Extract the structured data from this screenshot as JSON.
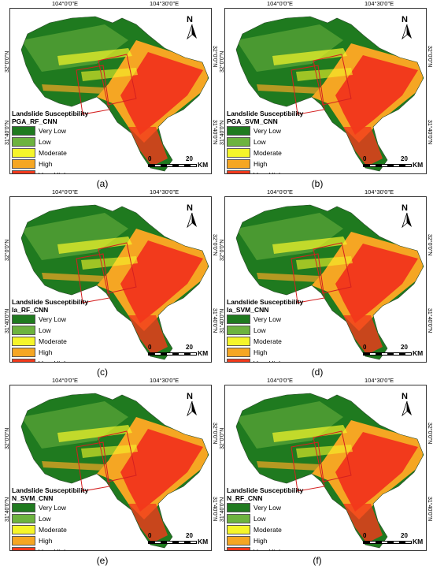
{
  "figure": {
    "legend_title": "Landslide Susceptibility",
    "classes": [
      {
        "label": "Very Low",
        "color": "#1f7a1f"
      },
      {
        "label": "Low",
        "color": "#6db33f"
      },
      {
        "label": "Moderate",
        "color": "#f5f52a"
      },
      {
        "label": "High",
        "color": "#f5a623"
      },
      {
        "label": "Very High",
        "color": "#f23a1c"
      }
    ],
    "lon_labels": [
      "104°0'0\"E",
      "104°30'0\"E"
    ],
    "lat_labels": [
      "32°0'0\"N",
      "31°40'0\"N"
    ],
    "north_label": "N",
    "scale": {
      "zero": "0",
      "max": "20",
      "unit": "KM"
    }
  },
  "panels": [
    {
      "model": "PGA_RF_CNN",
      "caption": "(a)"
    },
    {
      "model": "PGA_SVM_CNN",
      "caption": "(b)"
    },
    {
      "model": "Ia_RF_CNN",
      "caption": "(c)"
    },
    {
      "model": "Ia_SVM_CNN",
      "caption": "(d)"
    },
    {
      "model": "N_SVM_CNN",
      "caption": "(e)"
    },
    {
      "model": "N_RF_CNN",
      "caption": "(f)"
    }
  ]
}
